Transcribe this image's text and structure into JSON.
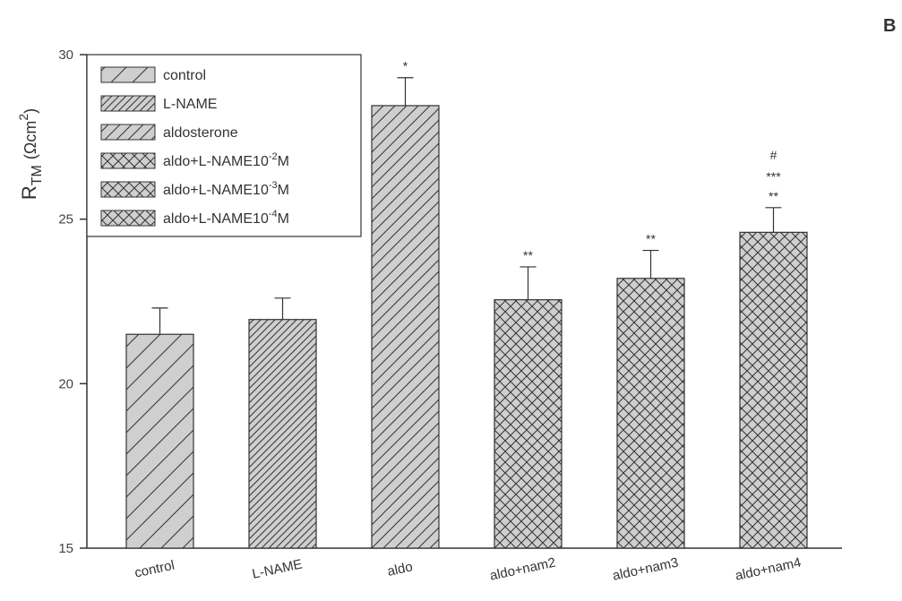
{
  "panel_label": "B",
  "chart_data": {
    "type": "bar",
    "categories": [
      "control",
      "L-NAME",
      "aldo",
      "aldo+nam2",
      "aldo+nam3",
      "aldo+nam4"
    ],
    "values": [
      21.5,
      21.95,
      28.45,
      22.55,
      23.2,
      24.6
    ],
    "errors": [
      0.8,
      0.65,
      0.85,
      1.0,
      0.85,
      0.75
    ],
    "significance": [
      "",
      "",
      "*",
      "**",
      "**",
      "**"
    ],
    "extra_marks": {
      "aldo+nam4": [
        "#",
        "***"
      ]
    },
    "patterns": [
      "diag-wide",
      "diag-dense",
      "diag-mid",
      "cross",
      "cross",
      "cross"
    ],
    "legend": [
      {
        "pattern": "diag-wide",
        "text": "control"
      },
      {
        "pattern": "diag-dense",
        "text": "L-NAME"
      },
      {
        "pattern": "diag-mid",
        "text": "aldosterone"
      },
      {
        "pattern": "cross",
        "text": "aldo+L-NAME10",
        "sup": "-2",
        "suffix": "M"
      },
      {
        "pattern": "cross",
        "text": "aldo+L-NAME10",
        "sup": "-3",
        "suffix": "M"
      },
      {
        "pattern": "cross",
        "text": "aldo+L-NAME10",
        "sup": "-4",
        "suffix": "M"
      }
    ],
    "legend_position": "top-left",
    "ylabel": {
      "main": "R",
      "sub": "TM",
      "unit": "(Ωcm",
      "sup": "2",
      "close": ")"
    },
    "ylim": [
      15,
      30
    ],
    "yticks": [
      15,
      20,
      25,
      30
    ],
    "grid": false,
    "colors": {
      "bar_fill": "#cfcfcf",
      "hatch": "#333333",
      "axis": "#333333"
    }
  }
}
